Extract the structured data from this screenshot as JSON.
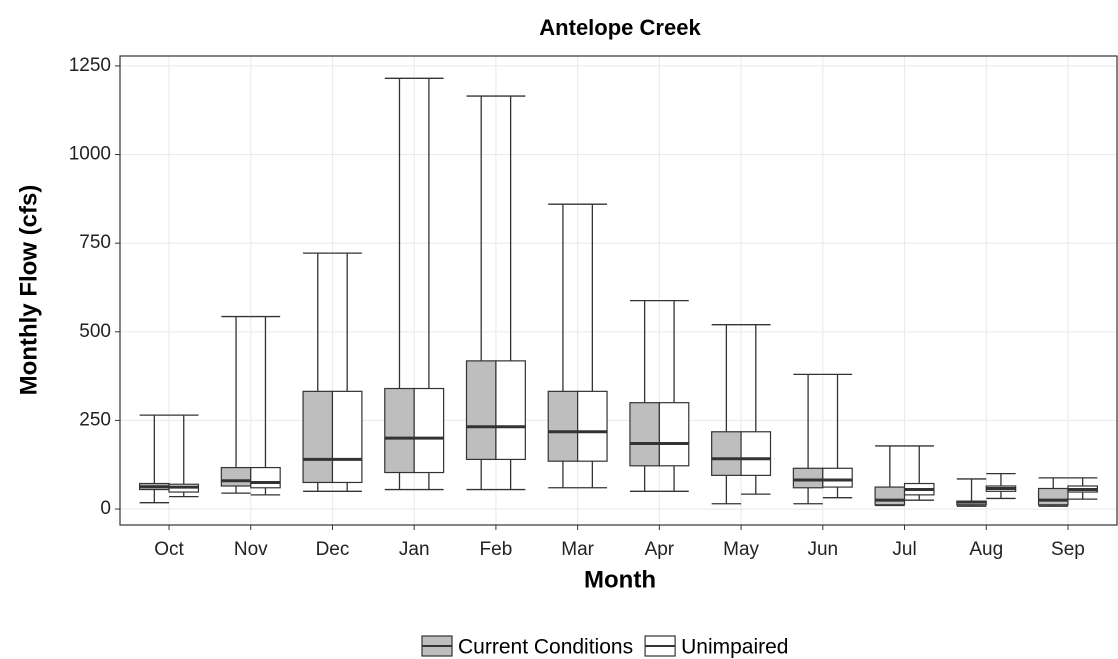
{
  "chart_data": {
    "type": "boxplot",
    "title": "Antelope Creek",
    "x_label": "Month",
    "y_label": "Monthly Flow (cfs)",
    "categories": [
      "Oct",
      "Nov",
      "Dec",
      "Jan",
      "Feb",
      "Mar",
      "Apr",
      "May",
      "Jun",
      "Jul",
      "Aug",
      "Sep"
    ],
    "ylim": [
      -45,
      1278
    ],
    "yticks": [
      0,
      250,
      500,
      750,
      1000,
      1250
    ],
    "grid": true,
    "legend": "bottom",
    "series": [
      {
        "name": "Current Conditions",
        "color": "#bebebe",
        "values": [
          [
            18,
            55,
            63,
            72,
            265
          ],
          [
            45,
            65,
            80,
            117,
            543
          ],
          [
            50,
            75,
            140,
            332,
            722
          ],
          [
            55,
            103,
            200,
            340,
            1215
          ],
          [
            55,
            140,
            232,
            418,
            1165
          ],
          [
            60,
            135,
            218,
            332,
            860
          ],
          [
            50,
            122,
            185,
            300,
            588
          ],
          [
            15,
            95,
            142,
            218,
            520
          ],
          [
            15,
            60,
            82,
            115,
            380
          ],
          [
            10,
            12,
            25,
            62,
            178
          ],
          [
            8,
            12,
            20,
            22,
            85
          ],
          [
            8,
            12,
            25,
            58,
            88
          ]
        ]
      },
      {
        "name": "Unimpaired",
        "color": "#ffffff",
        "values": [
          [
            35,
            48,
            62,
            70,
            265
          ],
          [
            40,
            60,
            75,
            117,
            543
          ],
          [
            50,
            75,
            140,
            332,
            722
          ],
          [
            55,
            103,
            200,
            340,
            1215
          ],
          [
            55,
            140,
            232,
            418,
            1165
          ],
          [
            60,
            135,
            218,
            332,
            860
          ],
          [
            50,
            122,
            185,
            300,
            588
          ],
          [
            42,
            95,
            142,
            218,
            520
          ],
          [
            32,
            62,
            82,
            115,
            380
          ],
          [
            25,
            40,
            55,
            72,
            178
          ],
          [
            30,
            50,
            58,
            65,
            100
          ],
          [
            28,
            48,
            55,
            65,
            88
          ]
        ]
      }
    ]
  }
}
